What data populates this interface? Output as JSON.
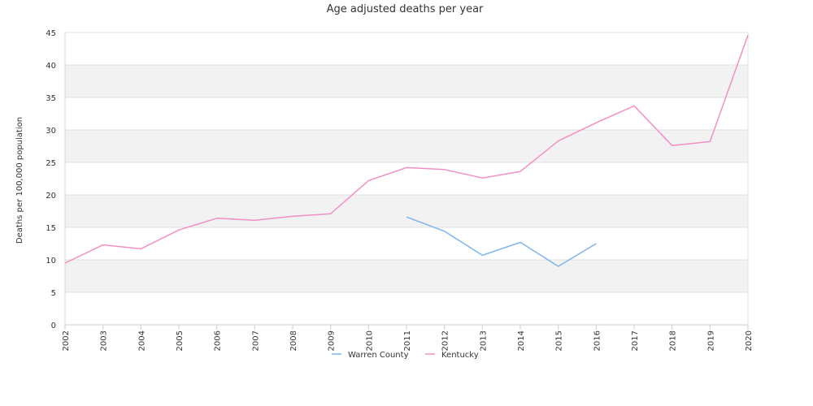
{
  "chart_data": {
    "type": "line",
    "title": "Age adjusted deaths per year",
    "xlabel": "",
    "ylabel": "Deaths per 100,000 population",
    "ylim": [
      0,
      45
    ],
    "yticks": [
      "0",
      "5",
      "10",
      "15",
      "20",
      "25",
      "30",
      "35",
      "40",
      "45"
    ],
    "x": [
      "2002",
      "2003",
      "2004",
      "2005",
      "2006",
      "2007",
      "2008",
      "2009",
      "2010",
      "2011",
      "2012",
      "2013",
      "2014",
      "2015",
      "2016",
      "2017",
      "2018",
      "2019",
      "2020"
    ],
    "x_tick_labels": [
      "2002",
      "2003",
      "2004",
      "2005",
      "2006",
      "2007",
      "2008",
      "2009",
      "2010",
      "2011",
      "2012",
      "2013",
      "2014",
      "2015",
      "2016",
      "2017",
      "2018",
      "2019",
      "2020"
    ],
    "grid": true,
    "alternating_bands": true,
    "legend_position": "bottom-center",
    "series": [
      {
        "name": "Warren County",
        "color": "#7cb5ec",
        "values": [
          null,
          null,
          null,
          null,
          null,
          null,
          null,
          null,
          null,
          16.6,
          14.4,
          10.7,
          12.7,
          9.0,
          12.5,
          null,
          null,
          null,
          null
        ]
      },
      {
        "name": "Kentucky",
        "color": "#f28fc4",
        "values": [
          9.5,
          12.3,
          11.7,
          14.6,
          16.4,
          16.1,
          16.7,
          17.1,
          22.2,
          24.2,
          23.9,
          22.6,
          23.6,
          28.3,
          31.1,
          33.7,
          27.6,
          28.2,
          44.6
        ]
      }
    ]
  }
}
